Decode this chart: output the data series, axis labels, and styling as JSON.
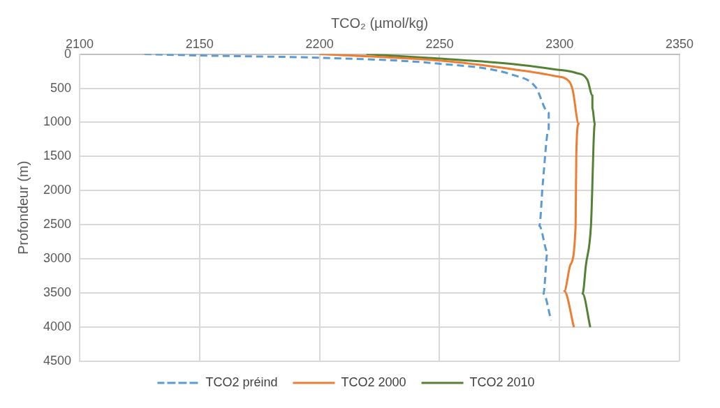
{
  "chart_data": {
    "type": "line",
    "xlabel": "TCO₂ (µmol/kg)",
    "ylabel": "Profondeur (m)",
    "xlim": [
      2100,
      2350
    ],
    "xticks": [
      2100,
      2150,
      2200,
      2250,
      2300,
      2350
    ],
    "ylim": [
      4500,
      0
    ],
    "yticks": [
      0,
      500,
      1000,
      1500,
      2000,
      2500,
      3000,
      3500,
      4000,
      4500
    ],
    "grid": true,
    "legend": "bottom",
    "marker": "none",
    "series": [
      {
        "name": "TCO2 préind",
        "color": "#5b9bd5",
        "line_style": "dashed",
        "x": [
          2127,
          2150,
          2200,
          2249,
          2281,
          2290,
          2295.5,
          2295.5,
          2293,
          2291.6,
          2295,
          2293.3,
          2296.5
        ],
        "values": [
          0,
          20,
          54,
          138,
          310,
          480,
          860,
          1100,
          1905,
          2515,
          2900,
          3510,
          3900
        ]
      },
      {
        "name": "TCO2 2000",
        "color": "#ed7d31",
        "line_style": "solid",
        "x": [
          2200,
          2249,
          2281,
          2298,
          2304,
          2305.5,
          2308,
          2307,
          2306.7,
          2304.5,
          2302,
          2306
        ],
        "values": [
          0,
          92,
          224,
          320,
          400,
          528,
          1020,
          1445,
          2515,
          3090,
          3470,
          4000
        ]
      },
      {
        "name": "TCO2 2010",
        "color": "#548235",
        "line_style": "solid",
        "x": [
          2219.5,
          2249,
          2281,
          2298,
          2306.8,
          2311.6,
          2313.7,
          2313.7,
          2314.7,
          2313.1,
          2311,
          2309.6,
          2312.8
        ],
        "values": [
          0,
          64,
          147,
          224,
          275,
          375,
          605,
          795,
          1020,
          2515,
          3090,
          3510,
          4000
        ]
      }
    ]
  }
}
